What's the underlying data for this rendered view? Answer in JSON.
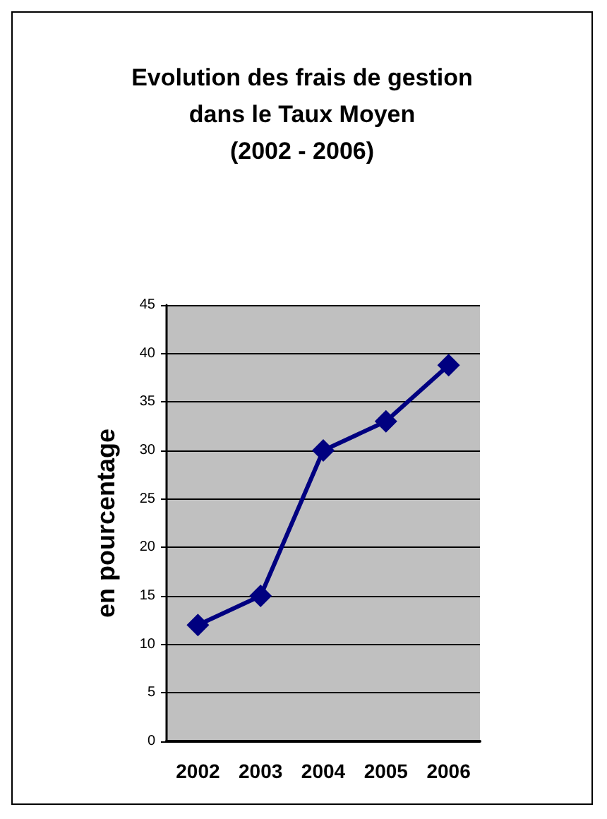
{
  "chart_data": {
    "type": "line",
    "title": "Evolution des frais de gestion\ndans le Taux Moyen\n(2002 - 2006)",
    "ylabel": "en pourcentage",
    "categories": [
      "2002",
      "2003",
      "2004",
      "2005",
      "2006"
    ],
    "series": [
      {
        "color": "#000080",
        "values": [
          12,
          15,
          30,
          33,
          38.8
        ]
      }
    ],
    "ylim": [
      0,
      45
    ],
    "yticks": [
      0,
      5,
      10,
      15,
      20,
      25,
      30,
      35,
      40,
      45
    ],
    "grid": "y",
    "marker": "diamond",
    "line_style": "solid"
  }
}
